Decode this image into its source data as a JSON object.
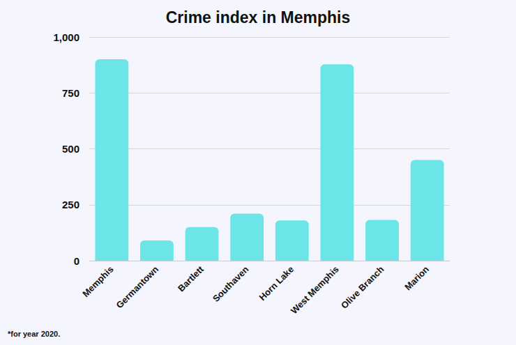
{
  "chart_data": {
    "type": "bar",
    "title": "Crime index in Memphis",
    "caption": "*for year 2020.",
    "categories": [
      "Memphis",
      "Germantown",
      "Bartlett",
      "Southaven",
      "Horn Lake",
      "West Memphis",
      "Olive Branch",
      "Marion"
    ],
    "values": [
      900,
      90,
      150,
      210,
      180,
      878,
      182,
      450
    ],
    "color": "#6ce5e8",
    "ylim": [
      0,
      1000
    ],
    "yticks": [
      0,
      250,
      500,
      750,
      {
        "value": 1000,
        "label": "1,000"
      }
    ],
    "grid": true
  }
}
